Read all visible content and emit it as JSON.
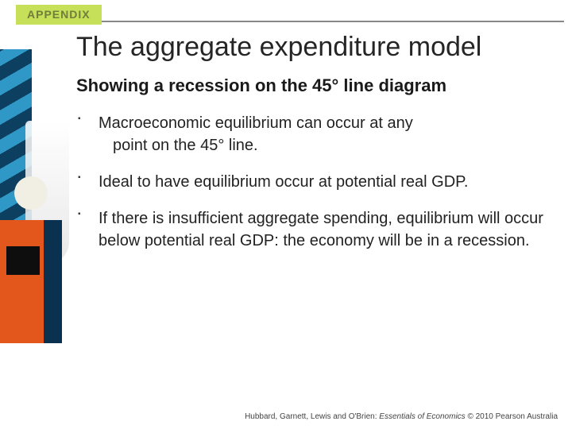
{
  "appendix_label": "APPENDIX",
  "title": "The aggregate expenditure model",
  "subtitle": "Showing a recession on the 45° line diagram",
  "bullets": [
    {
      "line1": "Macroeconomic equilibrium can occur at any",
      "line2": "point on the 45° line."
    },
    {
      "line1": "Ideal to have equilibrium occur at potential real GDP.",
      "line2": ""
    },
    {
      "line1": "If there is insufficient aggregate spending, equilibrium will occur below potential real GDP: the economy will be in a recession.",
      "line2": ""
    }
  ],
  "footer": {
    "authors": "Hubbard, Garnett, Lewis and O'Brien: ",
    "title_italic": "Essentials of Economics",
    "copyright": " © 2010 Pearson Australia"
  },
  "colors": {
    "tab_bg": "#c6e05a",
    "tab_text": "#717d3a",
    "rule": "#888888",
    "text": "#252525"
  }
}
